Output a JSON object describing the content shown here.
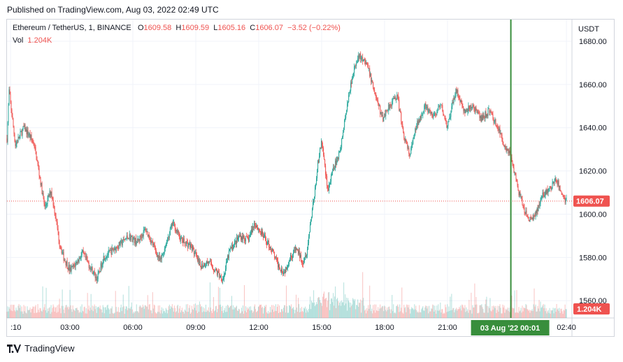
{
  "header": {
    "published": "Published on TradingView.com, Aug 03, 2022 02:49 UTC"
  },
  "legend": {
    "symbol": "Ethereum / TetherUS, 1, BINANCE",
    "o_label": "O",
    "o_value": "1609.58",
    "h_label": "H",
    "h_value": "1609.59",
    "l_label": "L",
    "l_value": "1605.16",
    "c_label": "C",
    "c_value": "1606.07",
    "change": "−3.52 (−0.22%)",
    "vol_label": "Vol",
    "vol_value": "1.204K"
  },
  "footer": {
    "brand": "TradingView"
  },
  "colors": {
    "up": "#26a69a",
    "down": "#ef5350",
    "crosshair": "#388e3c",
    "grid": "#f0f3fa"
  },
  "chart_data": {
    "type": "candlestick",
    "title": "Ethereum / TetherUS, 1, BINANCE",
    "currency_label": "USDT",
    "y_ticks": [
      1560,
      1580,
      1600,
      1620,
      1640,
      1660,
      1680
    ],
    "ylim": [
      1552,
      1690
    ],
    "x_ticks": [
      ":10",
      "03:00",
      "06:00",
      "09:00",
      "12:00",
      "15:00",
      "18:00",
      "21:00",
      "00:01",
      "02:40"
    ],
    "x_tick_hours": [
      0.17,
      3,
      6,
      9,
      12,
      15,
      18,
      21,
      24.02,
      26.67
    ],
    "xlim_hours": [
      0,
      26.9
    ],
    "last_price": "1606.07",
    "last_price_value": 1606.07,
    "last_volume": "1.204K",
    "crosshair": {
      "x_hours": 24.02,
      "label": "03 Aug '22   00:01"
    },
    "price_path": [
      [
        0.0,
        1635
      ],
      [
        0.1,
        1657
      ],
      [
        0.4,
        1632
      ],
      [
        0.8,
        1640
      ],
      [
        1.1,
        1636
      ],
      [
        1.3,
        1632
      ],
      [
        1.6,
        1615
      ],
      [
        1.8,
        1603
      ],
      [
        2.1,
        1611
      ],
      [
        2.3,
        1600
      ],
      [
        2.5,
        1587
      ],
      [
        2.7,
        1580
      ],
      [
        3.0,
        1574
      ],
      [
        3.2,
        1576
      ],
      [
        3.6,
        1582
      ],
      [
        4.0,
        1575
      ],
      [
        4.3,
        1570
      ],
      [
        4.6,
        1580
      ],
      [
        5.0,
        1583
      ],
      [
        5.5,
        1587
      ],
      [
        5.8,
        1590
      ],
      [
        6.2,
        1587
      ],
      [
        6.6,
        1593
      ],
      [
        7.0,
        1585
      ],
      [
        7.3,
        1578
      ],
      [
        7.6,
        1587
      ],
      [
        7.9,
        1596
      ],
      [
        8.3,
        1588
      ],
      [
        8.8,
        1585
      ],
      [
        9.2,
        1576
      ],
      [
        9.6,
        1578
      ],
      [
        10.0,
        1573
      ],
      [
        10.3,
        1570
      ],
      [
        10.6,
        1583
      ],
      [
        11.1,
        1590
      ],
      [
        11.5,
        1588
      ],
      [
        11.8,
        1596
      ],
      [
        12.2,
        1590
      ],
      [
        12.6,
        1584
      ],
      [
        12.9,
        1577
      ],
      [
        13.2,
        1573
      ],
      [
        13.5,
        1580
      ],
      [
        13.8,
        1584
      ],
      [
        14.1,
        1578
      ],
      [
        14.3,
        1583
      ],
      [
        14.6,
        1605
      ],
      [
        14.8,
        1622
      ],
      [
        15.0,
        1634
      ],
      [
        15.3,
        1611
      ],
      [
        15.6,
        1622
      ],
      [
        15.9,
        1630
      ],
      [
        16.2,
        1650
      ],
      [
        16.5,
        1666
      ],
      [
        16.8,
        1673
      ],
      [
        17.2,
        1668
      ],
      [
        17.6,
        1654
      ],
      [
        17.9,
        1644
      ],
      [
        18.2,
        1650
      ],
      [
        18.6,
        1655
      ],
      [
        18.9,
        1637
      ],
      [
        19.2,
        1627
      ],
      [
        19.5,
        1640
      ],
      [
        19.9,
        1650
      ],
      [
        20.3,
        1645
      ],
      [
        20.7,
        1650
      ],
      [
        21.0,
        1640
      ],
      [
        21.4,
        1658
      ],
      [
        21.8,
        1647
      ],
      [
        22.2,
        1650
      ],
      [
        22.6,
        1644
      ],
      [
        23.0,
        1648
      ],
      [
        23.4,
        1640
      ],
      [
        23.7,
        1632
      ],
      [
        24.0,
        1628
      ],
      [
        24.3,
        1614
      ],
      [
        24.6,
        1603
      ],
      [
        24.9,
        1597
      ],
      [
        25.2,
        1600
      ],
      [
        25.5,
        1608
      ],
      [
        25.9,
        1612
      ],
      [
        26.2,
        1616
      ],
      [
        26.5,
        1608
      ],
      [
        26.67,
        1606.07
      ]
    ]
  }
}
